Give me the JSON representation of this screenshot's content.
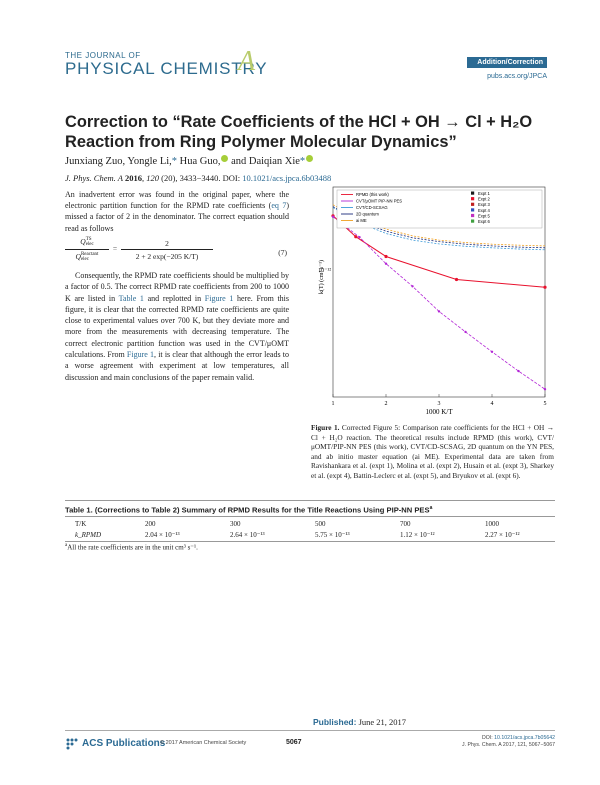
{
  "header": {
    "journal_small": "THE JOURNAL OF",
    "journal_big": "PHYSICAL CHEMISTRY",
    "journal_letter": "A",
    "banner": "Addition/Correction",
    "url": "pubs.acs.org/JPCA"
  },
  "article": {
    "title": "Correction to “Rate Coefficients of the HCl + OH → Cl + H₂O Reaction from Ring Polymer Molecular Dynamics”",
    "authors": [
      "Junxiang Zuo,",
      "Yongle Li,",
      "Hua Guo,",
      "and Daiqian Xie"
    ],
    "citation_journal": "J. Phys. Chem. A",
    "citation_year": "2016",
    "citation_vol": "120",
    "citation_issue": "(20),",
    "citation_pages": "3433−3440.",
    "citation_doi_label": "DOI:",
    "citation_doi": "10.1021/acs.jpca.6b03488"
  },
  "body": {
    "para1_a": "An inadvertent error was found in the original paper, where the electronic partition function for the RPMD rate coefficients (",
    "para1_link": "eq 7",
    "para1_b": ") missed a factor of 2 in the denominator. The correct equation should read as follows",
    "eq_lhs_num": "Q",
    "eq_lhs_num_sup": "TS",
    "eq_lhs_num_sub": "elec",
    "eq_lhs_den": "Q",
    "eq_lhs_den_sup": "Reactant",
    "eq_lhs_den_sub": "elec",
    "eq_equals": "=",
    "eq_rhs_num": "2",
    "eq_rhs_den": "2 + 2 exp(−205 K/T)",
    "eq_number": "(7)",
    "para2_a": "Consequently, the RPMD rate coefficients should be multiplied by a factor of 0.5. The correct RPMD rate coefficients from 200 to 1000 K are listed in ",
    "para2_link1": "Table 1",
    "para2_b": " and replotted in ",
    "para2_link2": "Figure 1",
    "para2_c": " here. From this figure, it is clear that the corrected RPMD rate coefficients are quite close to experimental values over 700 K, but they deviate more and more from the measurements with decreasing temperature. The correct electronic partition function was used in the CVT/μOMT calculations. From ",
    "para2_link3": "Figure 1",
    "para2_d": ", it is clear that although the error leads to a worse agreement with experiment at low temperatures, all discussion and main conclusions of the paper remain valid."
  },
  "figure": {
    "ylabel": "k(T) (cm³ s⁻¹)",
    "xlabel": "1000 K/T",
    "y_tick": "10⁻¹²",
    "x_ticks": [
      "1",
      "2",
      "3",
      "4",
      "5"
    ],
    "legend_left": [
      "RPMD (this work)",
      "CVT/μOMT PIP-NN PES",
      "CVT/CD-SCSAG",
      "2D quantum",
      "ai ME"
    ],
    "legend_right": [
      "Expt 1",
      "Expt 2",
      "Expt 3",
      "Expt 4",
      "Expt 5",
      "Expt 6"
    ],
    "caption_label": "Figure 1.",
    "caption_text": " Corrected Figure 5: Comparison rate coefficients for the HCl + OH → Cl + H₂O reaction. The theoretical results include RPMD (this work), CVT/μOMT/PIP-NN PES (this work), CVT/CD-SCSAG, 2D quantum on the YN PES, and ab initio master equation (ai ME). Experimental data are taken from Ravishankara et al. (expt 1), Molina et al. (expt 2), Husain et al. (expt 3), Sharkey et al. (expt 4), Battin-Leclerc et al. (expt 5), and Bryukov et al. (expt 6)."
  },
  "chart_data": {
    "type": "line",
    "xlabel": "1000 K/T",
    "ylabel": "k(T) (cm³ s⁻¹)",
    "xlim": [
      1,
      5
    ],
    "ylog": true,
    "series": [
      {
        "name": "RPMD (this work)",
        "color": "#e8112d",
        "x": [
          1.0,
          1.43,
          2.0,
          3.33,
          5.0
        ],
        "y": [
          2.27e-12,
          1.12e-12,
          5.75e-13,
          2.64e-13,
          2.04e-13
        ]
      },
      {
        "name": "CVT/μOMT PIP-NN PES",
        "color": "#b326d6",
        "x": [
          1.0,
          1.5,
          2.0,
          2.5,
          3.0,
          3.5,
          4.0,
          4.5,
          5.0
        ],
        "y": [
          2.2e-12,
          1.1e-12,
          4.5e-13,
          2.1e-13,
          9e-14,
          4.5e-14,
          2.3e-14,
          1.2e-14,
          6.5e-15
        ]
      },
      {
        "name": "CVT/CD-SCSAG",
        "color": "#3a9ad9",
        "x": [
          1.0,
          1.5,
          2.0,
          2.5,
          3.0,
          3.5,
          4.0,
          4.5,
          5.0
        ],
        "y": [
          3e-12,
          1.8e-12,
          1.25e-12,
          1e-12,
          8.8e-13,
          8.1e-13,
          7.7e-13,
          7.4e-13,
          7.2e-13
        ]
      },
      {
        "name": "2D quantum",
        "color": "#1a2a7a",
        "x": [
          1.0,
          1.5,
          2.0,
          2.5,
          3.0,
          3.5,
          4.0,
          4.5,
          5.0
        ],
        "y": [
          3.1e-12,
          1.9e-12,
          1.35e-12,
          1.08e-12,
          9.5e-13,
          8.7e-13,
          8.2e-13,
          7.9e-13,
          7.7e-13
        ]
      },
      {
        "name": "ai ME",
        "color": "#f0a020",
        "x": [
          1.0,
          1.5,
          2.0,
          2.5,
          3.0,
          3.5,
          4.0,
          4.5,
          5.0
        ],
        "y": [
          3.3e-12,
          2e-12,
          1.45e-12,
          1.15e-12,
          1e-12,
          9.2e-13,
          8.7e-13,
          8.4e-13,
          8.2e-13
        ]
      }
    ]
  },
  "table": {
    "title": "Table 1. (Corrections to Table 2) Summary of RPMD Results for the Title Reactions Using PIP-NN PES",
    "title_sup": "a",
    "headers": [
      "T/K",
      "200",
      "300",
      "500",
      "700",
      "1000"
    ],
    "row_label": "k_RPMD",
    "row_values": [
      "2.04 × 10⁻¹³",
      "2.64 × 10⁻¹³",
      "5.75 × 10⁻¹³",
      "1.12 × 10⁻¹²",
      "2.27 × 10⁻¹²"
    ],
    "note_sup": "a",
    "note": "All the rate coefficients are in the unit cm³ s⁻¹."
  },
  "footer": {
    "published_label": "Published:",
    "published_date": "June 21, 2017",
    "acs": "ACS Publications",
    "copyright": "© 2017 American Chemical Society",
    "page": "5067",
    "doi_label": "DOI:",
    "doi": "10.1021/acs.jpca.7b05642",
    "citation": "J. Phys. Chem. A 2017, 121, 5067−5067"
  }
}
